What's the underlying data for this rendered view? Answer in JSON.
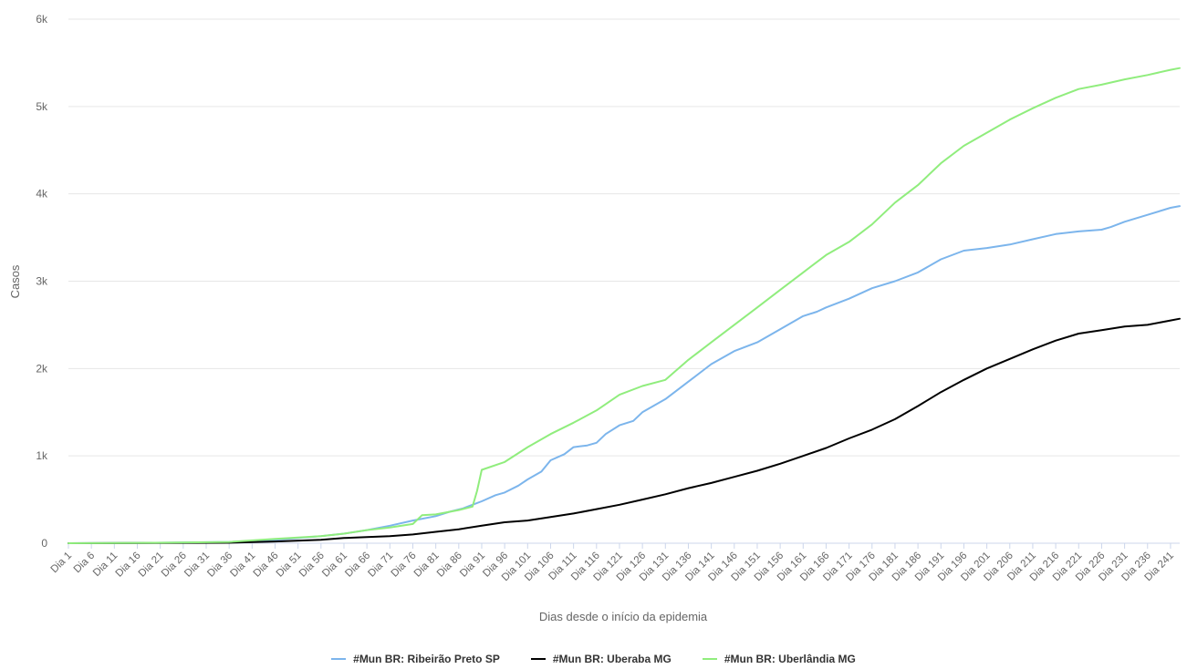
{
  "chart_data": {
    "type": "line",
    "xlabel": "Dias desde o início da epidemia",
    "ylabel": "Casos",
    "ylim": [
      0,
      6000
    ],
    "yticks": [
      {
        "value": 0,
        "label": "0"
      },
      {
        "value": 1000,
        "label": "1k"
      },
      {
        "value": 2000,
        "label": "2k"
      },
      {
        "value": 3000,
        "label": "3k"
      },
      {
        "value": 4000,
        "label": "4k"
      },
      {
        "value": 5000,
        "label": "5k"
      },
      {
        "value": 6000,
        "label": "6k"
      }
    ],
    "xlim": [
      1,
      243
    ],
    "xticks": [
      {
        "value": 1,
        "label": "Dia 1"
      },
      {
        "value": 6,
        "label": "Dia 6"
      },
      {
        "value": 11,
        "label": "Dia 11"
      },
      {
        "value": 16,
        "label": "Dia 16"
      },
      {
        "value": 21,
        "label": "Dia 21"
      },
      {
        "value": 26,
        "label": "Dia 26"
      },
      {
        "value": 31,
        "label": "Dia 31"
      },
      {
        "value": 36,
        "label": "Dia 36"
      },
      {
        "value": 41,
        "label": "Dia 41"
      },
      {
        "value": 46,
        "label": "Dia 46"
      },
      {
        "value": 51,
        "label": "Dia 51"
      },
      {
        "value": 56,
        "label": "Dia 56"
      },
      {
        "value": 61,
        "label": "Dia 61"
      },
      {
        "value": 66,
        "label": "Dia 66"
      },
      {
        "value": 71,
        "label": "Dia 71"
      },
      {
        "value": 76,
        "label": "Dia 76"
      },
      {
        "value": 81,
        "label": "Dia 81"
      },
      {
        "value": 86,
        "label": "Dia 86"
      },
      {
        "value": 91,
        "label": "Dia 91"
      },
      {
        "value": 96,
        "label": "Dia 96"
      },
      {
        "value": 101,
        "label": "Dia 101"
      },
      {
        "value": 106,
        "label": "Dia 106"
      },
      {
        "value": 111,
        "label": "Dia 111"
      },
      {
        "value": 116,
        "label": "Dia 116"
      },
      {
        "value": 121,
        "label": "Dia 121"
      },
      {
        "value": 126,
        "label": "Dia 126"
      },
      {
        "value": 131,
        "label": "Dia 131"
      },
      {
        "value": 136,
        "label": "Dia 136"
      },
      {
        "value": 141,
        "label": "Dia 141"
      },
      {
        "value": 146,
        "label": "Dia 146"
      },
      {
        "value": 151,
        "label": "Dia 151"
      },
      {
        "value": 156,
        "label": "Dia 156"
      },
      {
        "value": 161,
        "label": "Dia 161"
      },
      {
        "value": 166,
        "label": "Dia 166"
      },
      {
        "value": 171,
        "label": "Dia 171"
      },
      {
        "value": 176,
        "label": "Dia 176"
      },
      {
        "value": 181,
        "label": "Dia 181"
      },
      {
        "value": 186,
        "label": "Dia 186"
      },
      {
        "value": 191,
        "label": "Dia 191"
      },
      {
        "value": 196,
        "label": "Dia 196"
      },
      {
        "value": 201,
        "label": "Dia 201"
      },
      {
        "value": 206,
        "label": "Dia 206"
      },
      {
        "value": 211,
        "label": "Dia 211"
      },
      {
        "value": 216,
        "label": "Dia 216"
      },
      {
        "value": 221,
        "label": "Dia 221"
      },
      {
        "value": 226,
        "label": "Dia 226"
      },
      {
        "value": 231,
        "label": "Dia 231"
      },
      {
        "value": 236,
        "label": "Dia 236"
      },
      {
        "value": 241,
        "label": "Dia 241"
      }
    ],
    "grid": true,
    "legend_position": "bottom-center",
    "series": [
      {
        "name": "#Mun BR: Ribeirão Preto SP",
        "color": "#7cb5ec",
        "x": [
          1,
          20,
          36,
          46,
          56,
          61,
          66,
          71,
          76,
          81,
          84,
          87,
          89,
          91,
          94,
          96,
          99,
          101,
          104,
          106,
          109,
          111,
          114,
          116,
          118,
          121,
          124,
          126,
          131,
          136,
          141,
          146,
          151,
          156,
          161,
          164,
          166,
          171,
          176,
          181,
          186,
          191,
          196,
          201,
          206,
          211,
          216,
          221,
          226,
          228,
          231,
          236,
          241,
          243
        ],
        "y": [
          0,
          5,
          15,
          40,
          80,
          110,
          150,
          200,
          260,
          310,
          360,
          400,
          440,
          480,
          550,
          580,
          660,
          730,
          820,
          950,
          1020,
          1100,
          1120,
          1150,
          1250,
          1350,
          1400,
          1500,
          1650,
          1850,
          2050,
          2200,
          2300,
          2450,
          2600,
          2650,
          2700,
          2800,
          2920,
          3000,
          3100,
          3250,
          3350,
          3380,
          3420,
          3480,
          3540,
          3570,
          3590,
          3620,
          3680,
          3760,
          3840,
          3860
        ]
      },
      {
        "name": "#Mun BR: Uberaba MG",
        "color": "#000000",
        "x": [
          1,
          20,
          36,
          46,
          56,
          61,
          66,
          71,
          76,
          81,
          86,
          91,
          96,
          101,
          106,
          111,
          116,
          121,
          126,
          131,
          136,
          141,
          146,
          151,
          156,
          161,
          166,
          171,
          176,
          181,
          186,
          191,
          196,
          201,
          206,
          211,
          216,
          221,
          226,
          231,
          236,
          241,
          243
        ],
        "y": [
          0,
          2,
          5,
          20,
          40,
          60,
          70,
          80,
          100,
          130,
          160,
          200,
          240,
          260,
          300,
          340,
          390,
          440,
          500,
          560,
          630,
          690,
          760,
          830,
          910,
          1000,
          1090,
          1200,
          1300,
          1420,
          1570,
          1730,
          1870,
          2000,
          2110,
          2220,
          2320,
          2400,
          2440,
          2480,
          2500,
          2550,
          2570
        ]
      },
      {
        "name": "#Mun BR: Uberlândia MG",
        "color": "#90ed7d",
        "x": [
          1,
          20,
          36,
          46,
          56,
          61,
          66,
          71,
          76,
          78,
          81,
          86,
          89,
          90,
          91,
          96,
          101,
          106,
          111,
          116,
          121,
          126,
          131,
          136,
          141,
          146,
          151,
          156,
          161,
          166,
          171,
          176,
          181,
          186,
          191,
          196,
          201,
          206,
          211,
          216,
          221,
          226,
          231,
          236,
          241,
          243
        ],
        "y": [
          0,
          5,
          15,
          50,
          80,
          110,
          150,
          180,
          220,
          320,
          330,
          380,
          420,
          600,
          840,
          930,
          1100,
          1250,
          1380,
          1520,
          1700,
          1800,
          1870,
          2100,
          2300,
          2500,
          2700,
          2900,
          3100,
          3300,
          3450,
          3650,
          3900,
          4100,
          4350,
          4550,
          4700,
          4850,
          4980,
          5100,
          5200,
          5250,
          5310,
          5360,
          5420,
          5440
        ]
      }
    ]
  }
}
